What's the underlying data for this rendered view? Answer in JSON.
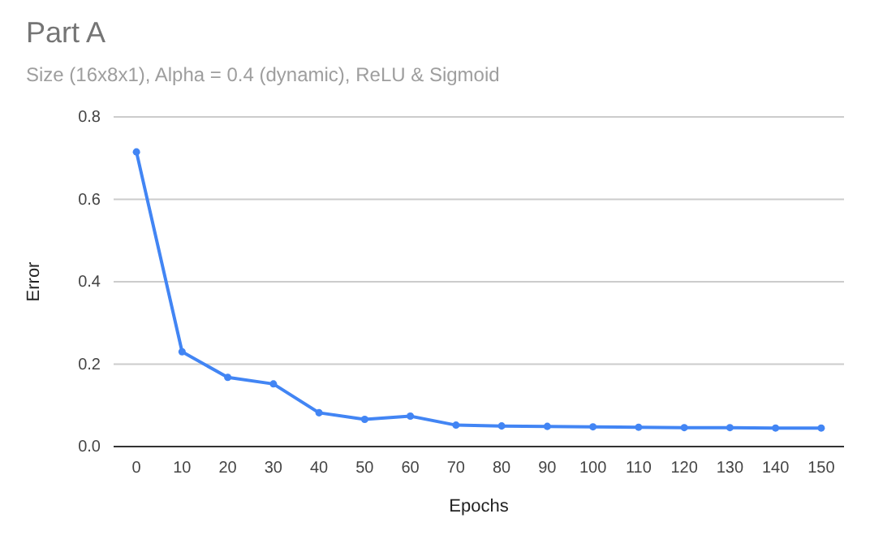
{
  "chart_data": {
    "type": "line",
    "title": "Part A",
    "subtitle": "Size (16x8x1), Alpha = 0.4 (dynamic), ReLU & Sigmoid",
    "xlabel": "Epochs",
    "ylabel": "Error",
    "categories": [
      "0",
      "10",
      "20",
      "30",
      "40",
      "50",
      "60",
      "70",
      "80",
      "90",
      "100",
      "110",
      "120",
      "130",
      "140",
      "150"
    ],
    "series": [
      {
        "color": "#4285f4",
        "values": [
          0.715,
          0.23,
          0.168,
          0.152,
          0.082,
          0.066,
          0.074,
          0.052,
          0.05,
          0.049,
          0.048,
          0.047,
          0.046,
          0.046,
          0.045,
          0.045
        ]
      }
    ],
    "ylim": [
      0,
      0.8
    ],
    "yticks": [
      {
        "value": 0,
        "label": "0.0"
      },
      0.2,
      0.4,
      0.6,
      0.8
    ],
    "grid": "y",
    "marker": "circle",
    "line_style": "solid"
  }
}
